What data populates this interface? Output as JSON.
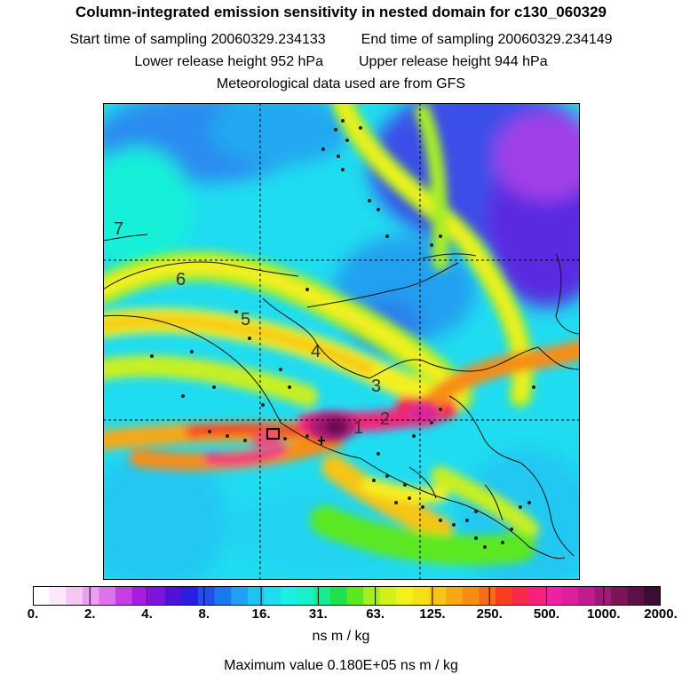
{
  "title": "Column-integrated emission sensitivity in nested domain for c130_060329",
  "sampling": {
    "start_label": "Start time of sampling",
    "start_value": "20060329.234133",
    "end_label": "End time of sampling",
    "end_value": "20060329.234149"
  },
  "release": {
    "lower_label": "Lower release height",
    "lower_value": "952 hPa",
    "upper_label": "Upper release height",
    "upper_value": "944 hPa"
  },
  "met_note": "Meteorological data used are from GFS",
  "map": {
    "day_labels": [
      "7",
      "6",
      "5",
      "4",
      "3",
      "2",
      "1"
    ]
  },
  "colorbar": {
    "tick_labels": [
      "0.",
      "2.",
      "4.",
      "8.",
      "16.",
      "31.",
      "63.",
      "125.",
      "250.",
      "500.",
      "1000.",
      "2000."
    ],
    "colors": [
      "#ffffff",
      "#fbe6fb",
      "#f4c6f4",
      "#ec9ef0",
      "#dc72ec",
      "#c83ce6",
      "#a81ce0",
      "#7c14dc",
      "#5012d8",
      "#2c1ee0",
      "#2050e8",
      "#1878ee",
      "#20a0f2",
      "#20c2f4",
      "#20dcf0",
      "#18f0e8",
      "#18f0c8",
      "#18ec90",
      "#20e050",
      "#5ce820",
      "#a4ee20",
      "#d4f01c",
      "#f4f01c",
      "#f8e018",
      "#f8c418",
      "#f8a814",
      "#f88c14",
      "#f86c18",
      "#f84020",
      "#f82848",
      "#f8207c",
      "#f020a4",
      "#dc209c",
      "#c01c90",
      "#a01878",
      "#7c1458",
      "#5c1048",
      "#3c0c34"
    ]
  },
  "units": "ns m / kg",
  "max_value_label": "Maximum value  0.180E+05 ns m / kg"
}
